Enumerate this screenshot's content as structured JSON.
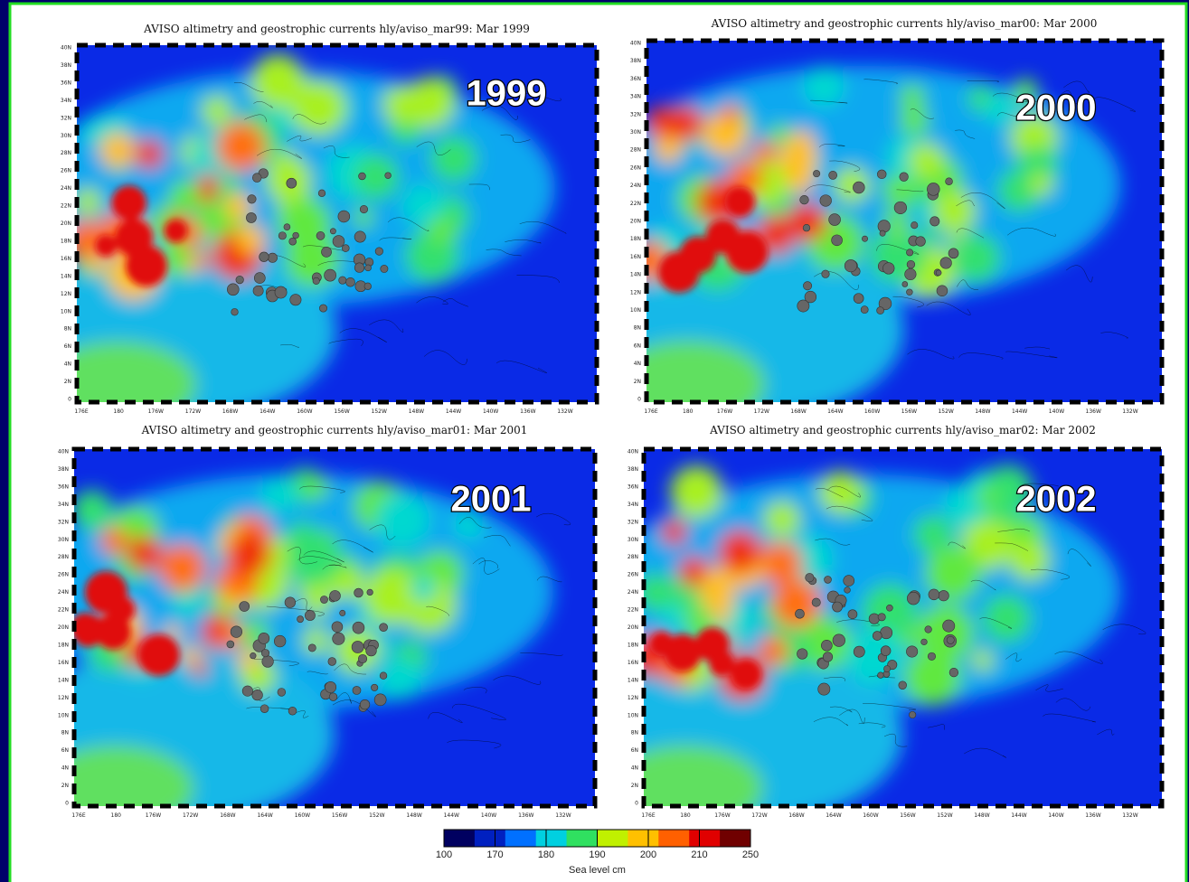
{
  "panels": [
    {
      "title": "AVISO altimetry and geostrophic currents hly/aviso_mar99: Mar 1999",
      "year": "1999"
    },
    {
      "title": "AVISO altimetry and geostrophic currents hly/aviso_mar00: Mar 2000",
      "year": "2000"
    },
    {
      "title": "AVISO altimetry and geostrophic currents hly/aviso_mar01: Mar 2001",
      "year": "2001"
    },
    {
      "title": "AVISO altimetry and geostrophic currents hly/aviso_mar02: Mar 2002",
      "year": "2002"
    }
  ],
  "lat_labels": [
    "40N",
    "38N",
    "36N",
    "34N",
    "32N",
    "30N",
    "28N",
    "26N",
    "24N",
    "22N",
    "20N",
    "18N",
    "16N",
    "14N",
    "12N",
    "10N",
    "8N",
    "6N",
    "4N",
    "2N",
    "0"
  ],
  "lon_labels": [
    "176E",
    "180",
    "176W",
    "172W",
    "168W",
    "164W",
    "160W",
    "156W",
    "152W",
    "148W",
    "144W",
    "140W",
    "136W",
    "132W"
  ],
  "colorbar": {
    "label": "Sea level cm",
    "ticks": [
      100,
      170,
      180,
      190,
      200,
      210,
      250
    ],
    "colors": [
      "#000060",
      "#0020c0",
      "#0070ff",
      "#00d0e0",
      "#30e060",
      "#c0f000",
      "#ffc000",
      "#ff6000",
      "#e00000",
      "#700000"
    ]
  }
}
